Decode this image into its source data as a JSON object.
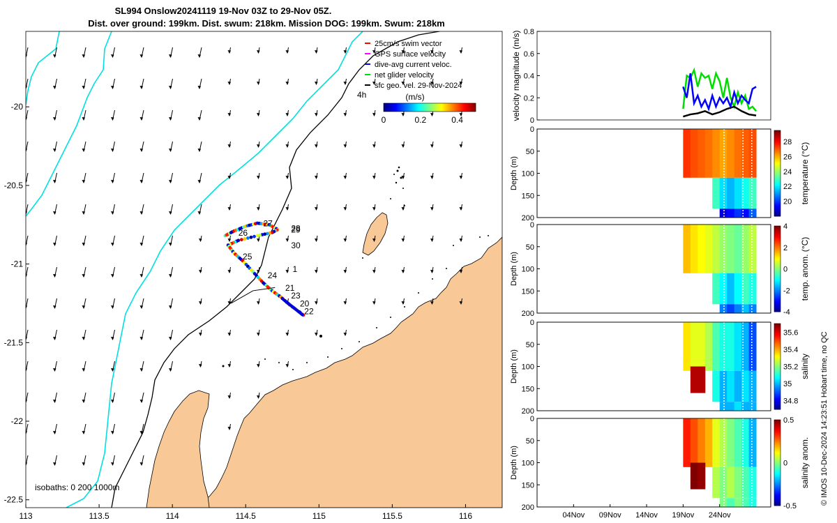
{
  "title_line1": "SL994 Onslow20241119 19-Nov 03Z to 29-Nov 05Z.",
  "title_line2": "Dist. over ground: 199km. Dist. swum: 218km. Mission DOG: 199km. Swum: 218km",
  "legend": {
    "items": [
      {
        "label": "25cm/s swim vector",
        "color": "#ff0000"
      },
      {
        "label": "GPS surface velocity",
        "color": "#ff00ff"
      },
      {
        "label": "dive-avg current veloc.",
        "color": "#0000ff"
      },
      {
        "label": "net glider velocity",
        "color": "#00dd00"
      },
      {
        "label": "sfc geo. vel. 29-Nov-2024",
        "color": "#000000"
      }
    ],
    "colorbar_title": "(m/s)",
    "colorbar_ticks": [
      "0",
      "0.2",
      "0.4"
    ],
    "extra_label": "4h"
  },
  "map": {
    "lon_ticks": [
      "113",
      "113.5",
      "114",
      "114.5",
      "115",
      "115.5",
      "116"
    ],
    "lat_ticks": [
      "-20",
      "-20.5",
      "-21",
      "-21.5",
      "-22",
      "-22.5"
    ],
    "isobaths_label": "isobaths: 0   200  1000m",
    "day_labels": [
      {
        "text": "27",
        "lon": 114.62,
        "lat": -20.76
      },
      {
        "text": "26",
        "lon": 114.45,
        "lat": -20.82
      },
      {
        "text": "28",
        "lon": 114.81,
        "lat": -20.79
      },
      {
        "text": "29",
        "lon": 114.81,
        "lat": -20.8
      },
      {
        "text": "30",
        "lon": 114.81,
        "lat": -20.9
      },
      {
        "text": "25",
        "lon": 114.48,
        "lat": -20.97
      },
      {
        "text": "1",
        "lon": 114.82,
        "lat": -21.05
      },
      {
        "text": "24",
        "lon": 114.65,
        "lat": -21.09
      },
      {
        "text": "21",
        "lon": 114.77,
        "lat": -21.17
      },
      {
        "text": "23",
        "lon": 114.81,
        "lat": -21.22
      },
      {
        "text": "20",
        "lon": 114.87,
        "lat": -21.27
      },
      {
        "text": "22",
        "lon": 114.9,
        "lat": -21.32
      }
    ]
  },
  "chart_data": [
    {
      "type": "line",
      "ylabel": "velocity magnitude (m/s)",
      "ylim": [
        0,
        0.8
      ],
      "yticks": [
        "0",
        "0.2",
        "0.4",
        "0.6",
        "0.8"
      ],
      "series": [
        {
          "name": "net glider velocity",
          "color": "#00dd00",
          "x": [
            19.0,
            19.5,
            20.0,
            20.5,
            21.0,
            21.5,
            22.0,
            22.5,
            23.0,
            23.5,
            24.0,
            24.5,
            25.0,
            25.5,
            26.0,
            26.5,
            27.0,
            27.5,
            28.0,
            28.5,
            29.0
          ],
          "values": [
            0.1,
            0.4,
            0.38,
            0.45,
            0.3,
            0.42,
            0.38,
            0.4,
            0.28,
            0.42,
            0.35,
            0.2,
            0.38,
            0.2,
            0.12,
            0.25,
            0.15,
            0.22,
            0.1,
            0.12,
            0.08
          ]
        },
        {
          "name": "dive-avg current veloc.",
          "color": "#0000ff",
          "x": [
            19.0,
            19.5,
            20.0,
            20.5,
            21.0,
            21.5,
            22.0,
            22.5,
            23.0,
            23.5,
            24.0,
            24.5,
            25.0,
            25.5,
            26.0,
            26.5,
            27.0,
            27.5,
            28.0,
            28.5,
            29.0
          ],
          "values": [
            0.3,
            0.2,
            0.42,
            0.15,
            0.22,
            0.12,
            0.18,
            0.1,
            0.22,
            0.12,
            0.2,
            0.15,
            0.2,
            0.12,
            0.25,
            0.15,
            0.22,
            0.18,
            0.15,
            0.28,
            0.3
          ]
        },
        {
          "name": "sfc geo. vel.",
          "color": "#000000",
          "x": [
            19.0,
            20.0,
            21.0,
            22.0,
            23.0,
            24.0,
            25.0,
            26.0,
            27.0,
            28.0,
            29.0
          ],
          "values": [
            0.03,
            0.05,
            0.06,
            0.08,
            0.05,
            0.07,
            0.1,
            0.12,
            0.08,
            0.05,
            0.04
          ]
        }
      ]
    },
    {
      "type": "heatmap",
      "ylabel": "Depth (m)",
      "clabel": "temperature (°C)",
      "ylim": [
        200,
        0
      ],
      "yticks": [
        "0",
        "50",
        "100",
        "150",
        "200"
      ],
      "cticks": [
        "28",
        "26",
        "24",
        "22",
        "20"
      ],
      "clim": [
        18,
        29.5
      ],
      "cells": [
        {
          "day": 19.5,
          "depth": 60,
          "value": 27.5
        },
        {
          "day": 20.5,
          "depth": 60,
          "value": 27.2
        },
        {
          "day": 21.5,
          "depth": 60,
          "value": 27.0
        },
        {
          "day": 22.5,
          "depth": 60,
          "value": 26.8
        },
        {
          "day": 23.5,
          "depth": 60,
          "value": 26.5
        },
        {
          "day": 24.5,
          "depth": 60,
          "value": 26.2
        },
        {
          "day": 25.5,
          "depth": 60,
          "value": 26.5
        },
        {
          "day": 26.5,
          "depth": 60,
          "value": 26.8
        },
        {
          "day": 27.5,
          "depth": 60,
          "value": 27.0
        },
        {
          "day": 28.5,
          "depth": 60,
          "value": 27.2
        },
        {
          "day": 23.5,
          "depth": 140,
          "value": 23.0
        },
        {
          "day": 24.5,
          "depth": 140,
          "value": 22.0
        },
        {
          "day": 25.5,
          "depth": 140,
          "value": 21.5
        },
        {
          "day": 26.5,
          "depth": 140,
          "value": 22.0
        },
        {
          "day": 27.5,
          "depth": 140,
          "value": 22.5
        },
        {
          "day": 28.5,
          "depth": 140,
          "value": 23.0
        },
        {
          "day": 24.5,
          "depth": 190,
          "value": 19.0
        },
        {
          "day": 25.5,
          "depth": 190,
          "value": 19.5
        },
        {
          "day": 26.5,
          "depth": 190,
          "value": 20.0
        },
        {
          "day": 27.5,
          "depth": 190,
          "value": 19.5
        },
        {
          "day": 28.5,
          "depth": 190,
          "value": 20.5
        }
      ]
    },
    {
      "type": "heatmap",
      "ylabel": "Depth (m)",
      "clabel": "temp. anom. (°C)",
      "ylim": [
        200,
        0
      ],
      "yticks": [
        "0",
        "50",
        "100",
        "150",
        "200"
      ],
      "cticks": [
        "4",
        "2",
        "0",
        "-2",
        "-4"
      ],
      "clim": [
        -4,
        4
      ],
      "cells": [
        {
          "day": 19.5,
          "depth": 60,
          "value": 1.5
        },
        {
          "day": 20.5,
          "depth": 60,
          "value": 1.2
        },
        {
          "day": 21.5,
          "depth": 60,
          "value": 1.0
        },
        {
          "day": 22.5,
          "depth": 60,
          "value": 0.8
        },
        {
          "day": 23.5,
          "depth": 60,
          "value": 0.5
        },
        {
          "day": 24.5,
          "depth": 60,
          "value": 0.2
        },
        {
          "day": 25.5,
          "depth": 60,
          "value": 0.0
        },
        {
          "day": 26.5,
          "depth": 60,
          "value": -0.2
        },
        {
          "day": 27.5,
          "depth": 60,
          "value": 0.2
        },
        {
          "day": 28.5,
          "depth": 60,
          "value": 0.5
        },
        {
          "day": 23.5,
          "depth": 140,
          "value": -0.5
        },
        {
          "day": 24.5,
          "depth": 140,
          "value": -1.0
        },
        {
          "day": 25.5,
          "depth": 140,
          "value": -1.5
        },
        {
          "day": 26.5,
          "depth": 140,
          "value": -1.0
        },
        {
          "day": 27.5,
          "depth": 140,
          "value": -0.5
        },
        {
          "day": 28.5,
          "depth": 140,
          "value": -0.8
        },
        {
          "day": 24.5,
          "depth": 190,
          "value": -2.0
        },
        {
          "day": 25.5,
          "depth": 190,
          "value": -2.5
        },
        {
          "day": 26.5,
          "depth": 190,
          "value": -2.0
        },
        {
          "day": 27.5,
          "depth": 190,
          "value": -1.5
        },
        {
          "day": 28.5,
          "depth": 190,
          "value": -2.0
        }
      ]
    },
    {
      "type": "heatmap",
      "ylabel": "Depth (m)",
      "clabel": "salinity",
      "ylim": [
        200,
        0
      ],
      "yticks": [
        "0",
        "50",
        "100",
        "150",
        "200"
      ],
      "cticks": [
        "35.6",
        "35.4",
        "35.2",
        "35",
        "34.8"
      ],
      "clim": [
        34.7,
        35.7
      ],
      "cells": [
        {
          "day": 19.5,
          "depth": 60,
          "value": 35.35
        },
        {
          "day": 20.5,
          "depth": 60,
          "value": 35.3
        },
        {
          "day": 21.5,
          "depth": 60,
          "value": 35.3
        },
        {
          "day": 22.5,
          "depth": 60,
          "value": 35.25
        },
        {
          "day": 23.5,
          "depth": 60,
          "value": 35.15
        },
        {
          "day": 24.5,
          "depth": 60,
          "value": 35.1
        },
        {
          "day": 25.5,
          "depth": 60,
          "value": 35.1
        },
        {
          "day": 26.5,
          "depth": 60,
          "value": 35.05
        },
        {
          "day": 27.5,
          "depth": 60,
          "value": 35.0
        },
        {
          "day": 28.5,
          "depth": 60,
          "value": 34.9
        },
        {
          "day": 20.5,
          "depth": 130,
          "value": 35.65
        },
        {
          "day": 21.5,
          "depth": 130,
          "value": 35.65
        },
        {
          "day": 23.5,
          "depth": 140,
          "value": 35.1
        },
        {
          "day": 24.5,
          "depth": 140,
          "value": 35.0
        },
        {
          "day": 25.5,
          "depth": 140,
          "value": 35.05
        },
        {
          "day": 26.5,
          "depth": 140,
          "value": 35.0
        },
        {
          "day": 27.5,
          "depth": 140,
          "value": 35.05
        },
        {
          "day": 28.5,
          "depth": 140,
          "value": 35.0
        },
        {
          "day": 24.5,
          "depth": 190,
          "value": 35.0
        },
        {
          "day": 25.5,
          "depth": 190,
          "value": 35.0
        },
        {
          "day": 26.5,
          "depth": 190,
          "value": 35.05
        },
        {
          "day": 27.5,
          "depth": 190,
          "value": 35.0
        },
        {
          "day": 28.5,
          "depth": 190,
          "value": 35.0
        }
      ]
    },
    {
      "type": "heatmap",
      "ylabel": "Depth (m)",
      "clabel": "salinity anom.",
      "ylim": [
        200,
        0
      ],
      "yticks": [
        "0",
        "50",
        "100",
        "150",
        "200"
      ],
      "cticks": [
        "0.5",
        "0",
        "-0.5"
      ],
      "clim": [
        -0.5,
        0.5
      ],
      "cells": [
        {
          "day": 19.5,
          "depth": 60,
          "value": 0.35
        },
        {
          "day": 20.5,
          "depth": 60,
          "value": 0.3
        },
        {
          "day": 21.5,
          "depth": 60,
          "value": 0.25
        },
        {
          "day": 22.5,
          "depth": 60,
          "value": 0.2
        },
        {
          "day": 23.5,
          "depth": 60,
          "value": 0.1
        },
        {
          "day": 24.5,
          "depth": 60,
          "value": 0.05
        },
        {
          "day": 25.5,
          "depth": 60,
          "value": 0.0
        },
        {
          "day": 26.5,
          "depth": 60,
          "value": -0.05
        },
        {
          "day": 27.5,
          "depth": 60,
          "value": -0.1
        },
        {
          "day": 28.5,
          "depth": 60,
          "value": -0.2
        },
        {
          "day": 20.5,
          "depth": 130,
          "value": 0.5
        },
        {
          "day": 21.5,
          "depth": 130,
          "value": 0.48
        },
        {
          "day": 23.5,
          "depth": 140,
          "value": 0.05
        },
        {
          "day": 24.5,
          "depth": 140,
          "value": 0.0
        },
        {
          "day": 25.5,
          "depth": 140,
          "value": 0.05
        },
        {
          "day": 26.5,
          "depth": 140,
          "value": 0.0
        },
        {
          "day": 27.5,
          "depth": 140,
          "value": -0.05
        },
        {
          "day": 28.5,
          "depth": 140,
          "value": -0.1
        },
        {
          "day": 24.5,
          "depth": 190,
          "value": 0.0
        },
        {
          "day": 25.5,
          "depth": 190,
          "value": -0.05
        },
        {
          "day": 26.5,
          "depth": 190,
          "value": 0.0
        },
        {
          "day": 27.5,
          "depth": 190,
          "value": -0.05
        },
        {
          "day": 28.5,
          "depth": 190,
          "value": -0.1
        }
      ]
    }
  ],
  "time_axis": {
    "tick_labels": [
      "04Nov",
      "09Nov",
      "14Nov",
      "19Nov",
      "24Nov"
    ],
    "tick_days": [
      4,
      9,
      14,
      19,
      24
    ],
    "xlim_days": [
      -1,
      31
    ]
  },
  "footer": "© IMOS 10-Dec-2024 14:23:51 Hobart time, no QC",
  "colors": {
    "land": "#f8c897",
    "cyan": "#00e0e0",
    "frame": "#000000"
  }
}
